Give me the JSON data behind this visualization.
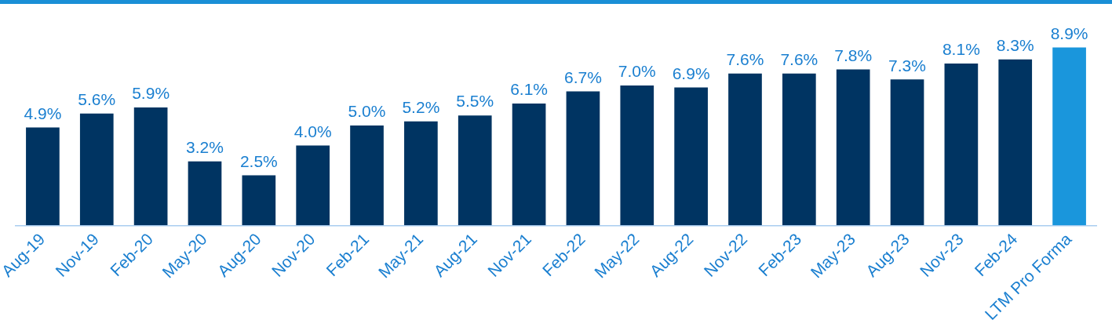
{
  "chart_data": {
    "type": "bar",
    "categories": [
      "Aug-19",
      "Nov-19",
      "Feb-20",
      "May-20",
      "Aug-20",
      "Nov-20",
      "Feb-21",
      "May-21",
      "Aug-21",
      "Nov-21",
      "Feb-22",
      "May-22",
      "Aug-22",
      "Nov-22",
      "Feb-23",
      "May-23",
      "Aug-23",
      "Nov-23",
      "Feb-24",
      "LTM Pro Forma"
    ],
    "values": [
      4.9,
      5.6,
      5.9,
      3.2,
      2.5,
      4.0,
      5.0,
      5.2,
      5.5,
      6.1,
      6.7,
      7.0,
      6.9,
      7.6,
      7.6,
      7.8,
      7.3,
      8.1,
      8.3,
      8.9
    ],
    "value_labels": [
      "4.9%",
      "5.6%",
      "5.9%",
      "3.2%",
      "2.5%",
      "4.0%",
      "5.0%",
      "5.2%",
      "5.5%",
      "6.1%",
      "6.7%",
      "7.0%",
      "6.9%",
      "7.6%",
      "7.6%",
      "7.8%",
      "7.3%",
      "8.1%",
      "8.3%",
      "8.9%"
    ],
    "colors": [
      "#003462",
      "#003462",
      "#003462",
      "#003462",
      "#003462",
      "#003462",
      "#003462",
      "#003462",
      "#003462",
      "#003462",
      "#003462",
      "#003462",
      "#003462",
      "#003462",
      "#003462",
      "#003462",
      "#003462",
      "#003462",
      "#003462",
      "#1a96dc"
    ],
    "tick_labels": "x",
    "grid": false,
    "legend": false
  }
}
